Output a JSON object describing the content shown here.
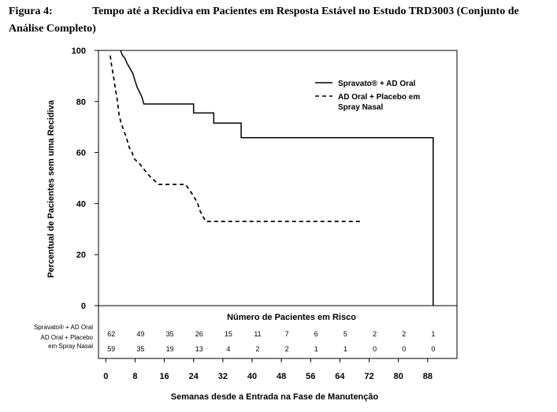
{
  "caption": {
    "label": "Figura 4:",
    "title": "Tempo até a Recidiva em Pacientes em Resposta Estável no Estudo TRD3003 (Conjunto de Análise Completo)"
  },
  "chart_data": {
    "type": "line",
    "xlabel": "Semanas desde a Entrada na Fase de Manutenção",
    "ylabel": "Percentual de Pacientes sem uma Recidiva",
    "xlim": [
      -2,
      96
    ],
    "ylim": [
      0,
      100
    ],
    "x_ticks": [
      0,
      8,
      16,
      24,
      32,
      40,
      48,
      56,
      64,
      72,
      80,
      88
    ],
    "y_ticks": [
      0,
      20,
      40,
      60,
      80,
      100
    ],
    "legend_position": "top-right",
    "series": [
      {
        "name": "Spravato® + AD Oral",
        "style": "solid",
        "points": [
          [
            4,
            100
          ],
          [
            4.6,
            98
          ],
          [
            5.2,
            97
          ],
          [
            5.8,
            95
          ],
          [
            6.6,
            93
          ],
          [
            7.4,
            91
          ],
          [
            7.9,
            88.5
          ],
          [
            8.6,
            85.5
          ],
          [
            9.8,
            82
          ],
          [
            10.4,
            79
          ],
          [
            24,
            79
          ],
          [
            24,
            75.5
          ],
          [
            29.5,
            75.5
          ],
          [
            29.5,
            71.5
          ],
          [
            37,
            71.5
          ],
          [
            37,
            65.8
          ],
          [
            89.5,
            65.8
          ],
          [
            89.5,
            0
          ]
        ]
      },
      {
        "name": "AD Oral + Placebo em\nSpray Nasal",
        "style": "dashed",
        "points": [
          [
            1.2,
            98
          ],
          [
            1.6,
            94
          ],
          [
            2.1,
            90
          ],
          [
            2.6,
            85
          ],
          [
            3.1,
            81
          ],
          [
            3.6,
            75
          ],
          [
            4.1,
            72
          ],
          [
            4.8,
            69
          ],
          [
            5.6,
            66
          ],
          [
            6.4,
            62
          ],
          [
            7.2,
            60
          ],
          [
            7.8,
            57.5
          ],
          [
            9.3,
            55.5
          ],
          [
            11.5,
            51.5
          ],
          [
            12.5,
            50
          ],
          [
            14.5,
            47.5
          ],
          [
            21.8,
            47.5
          ],
          [
            23.5,
            44
          ],
          [
            25,
            40.5
          ],
          [
            25.8,
            37
          ],
          [
            27.3,
            33
          ],
          [
            70,
            33
          ]
        ]
      }
    ]
  },
  "risk_table": {
    "title": "Número de Pacientes em Risco",
    "rows": [
      {
        "label": "Spravato® + AD Oral",
        "values": [
          "62",
          "49",
          "35",
          "26",
          "15",
          "11",
          "7",
          "6",
          "5",
          "2",
          "2",
          "1"
        ]
      },
      {
        "label": "AD Oral + Placebo\nem Spray Nasal",
        "values": [
          "59",
          "35",
          "19",
          "13",
          "4",
          "2",
          "2",
          "1",
          "1",
          "0",
          "0",
          "0"
        ]
      }
    ]
  }
}
